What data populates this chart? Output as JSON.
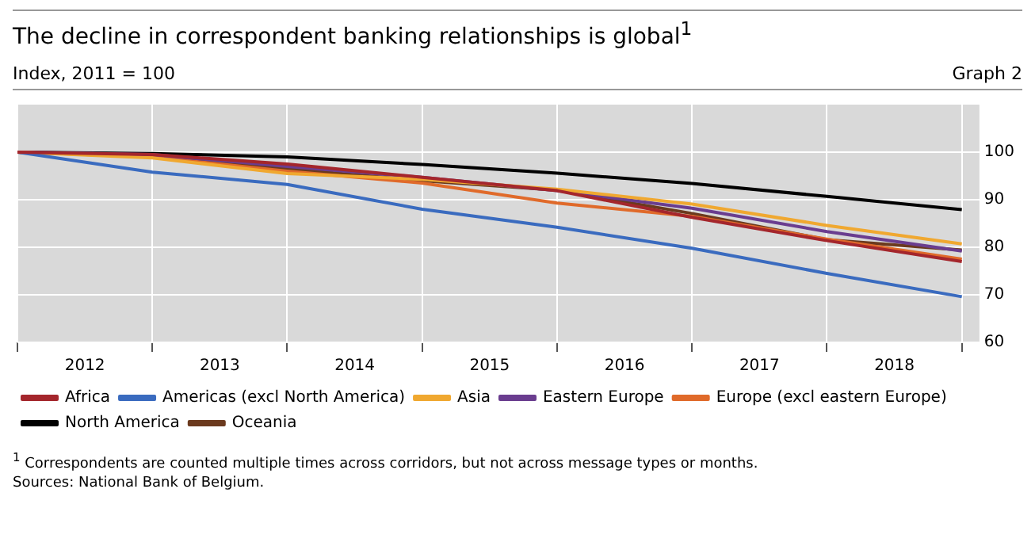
{
  "chart_data": {
    "type": "line",
    "title": "The decline in correspondent banking relationships is global$^{1}$",
    "subtitle": "Index, 2011 = 100",
    "annotations": [
      "Graph 2",
      "$^{1}$  Correspondents are counted multiple times across corridors, but not across message types or months.",
      "Sources: National Bank of Belgium."
    ],
    "x": [
      2012,
      2013,
      2014,
      2015,
      2016,
      2017,
      2018,
      2019
    ],
    "series": [
      {
        "name": "Africa",
        "color": "#a4262c",
        "values": [
          100,
          99.5,
          97.5,
          94.7,
          91.9,
          86.3,
          81.4,
          77.0
        ]
      },
      {
        "name": "Americas (excl North America)",
        "color": "#3a6bbf",
        "values": [
          100,
          95.8,
          93.2,
          88,
          84.2,
          79.8,
          74.5,
          69.6
        ]
      },
      {
        "name": "Asia",
        "color": "#f0a830",
        "values": [
          100,
          98.8,
          95.5,
          94.3,
          92.2,
          89.1,
          84.6,
          80.7
        ]
      },
      {
        "name": "Eastern Europe",
        "color": "#6a3d8f",
        "values": [
          100,
          99.5,
          97,
          94.7,
          91.9,
          88.2,
          83.3,
          79.2
        ]
      },
      {
        "name": "Europe (excl eastern Europe)",
        "color": "#e06a2a",
        "values": [
          100,
          99,
          96,
          93.5,
          89.3,
          86.5,
          81.7,
          77.5
        ]
      },
      {
        "name": "North America",
        "color": "#000000",
        "values": [
          100,
          99.7,
          99,
          97.4,
          95.6,
          93.4,
          90.7,
          87.9
        ]
      },
      {
        "name": "Oceania",
        "color": "#6b3a1e",
        "values": [
          100,
          99.3,
          96.5,
          94,
          92,
          87.1,
          81.6,
          79.4
        ]
      }
    ],
    "xlim": [
      2012,
      2019.13
    ],
    "xticks": [
      {
        "value": 2012,
        "label": null
      },
      {
        "value": 2012.5,
        "label": "2012"
      },
      {
        "value": 2013,
        "label": null
      },
      {
        "value": 2013.5,
        "label": "2013"
      },
      {
        "value": 2014,
        "label": null
      },
      {
        "value": 2014.5,
        "label": "2014"
      },
      {
        "value": 2015,
        "label": null
      },
      {
        "value": 2015.5,
        "label": "2015"
      },
      {
        "value": 2016,
        "label": null
      },
      {
        "value": 2016.5,
        "label": "2016"
      },
      {
        "value": 2017,
        "label": null
      },
      {
        "value": 2017.5,
        "label": "2017"
      },
      {
        "value": 2018,
        "label": null
      },
      {
        "value": 2018.5,
        "label": "2018"
      },
      {
        "value": 2019,
        "label": null
      }
    ],
    "ylim": [
      60,
      110
    ],
    "yticks": [
      60,
      70,
      80,
      90,
      100
    ],
    "grid": true,
    "legend": "bottom",
    "marker": "none",
    "line_style": "solid"
  }
}
